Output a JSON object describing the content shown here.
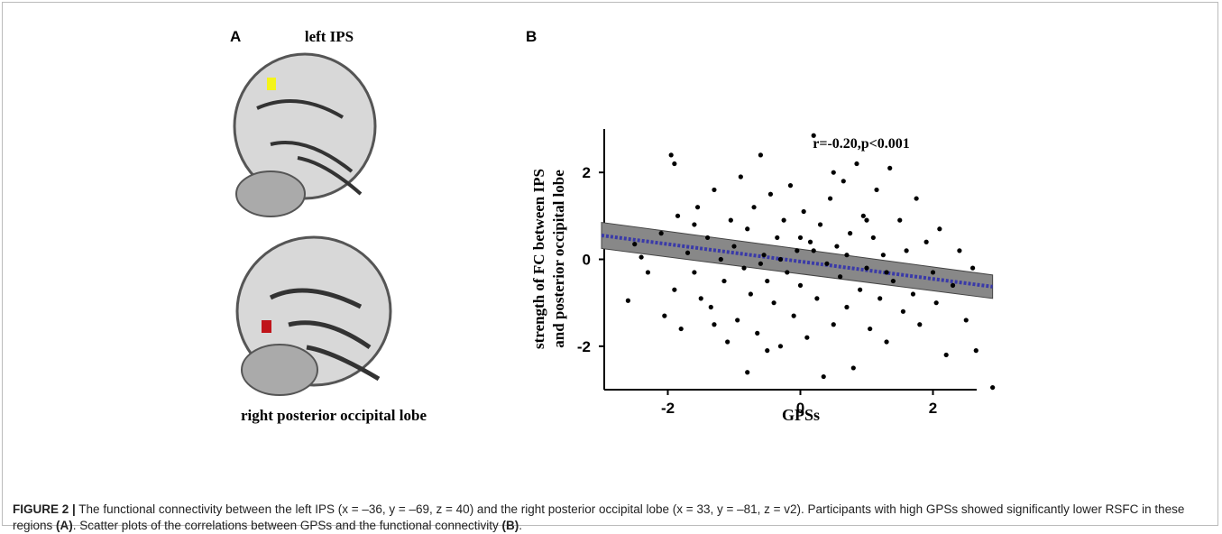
{
  "panel_a": {
    "label": "A",
    "top_label": "left IPS",
    "bottom_label": "right posterior occipital lobe"
  },
  "chart_data": {
    "type": "scatter",
    "panel_label": "B",
    "annotation": "r=-0.20,p<0.001",
    "x_label": "GPSs",
    "y_label": [
      "strength of FC between IPS",
      "and posterior occipital lobe"
    ],
    "xlim": [
      -3,
      3
    ],
    "ylim": [
      -3,
      3
    ],
    "xticks": [
      -2,
      0,
      2
    ],
    "yticks": [
      -2,
      0,
      2
    ],
    "color": "#000000",
    "x": [
      -2.6,
      -2.5,
      -2.4,
      -2.1,
      -2.05,
      -1.95,
      -1.9,
      -1.85,
      -1.8,
      -1.7,
      -1.6,
      -1.55,
      -1.5,
      -1.4,
      -1.35,
      -1.3,
      -1.2,
      -1.15,
      -1.1,
      -1.05,
      -1.0,
      -0.95,
      -0.9,
      -0.85,
      -0.8,
      -0.75,
      -0.7,
      -0.65,
      -0.6,
      -0.55,
      -0.5,
      -0.45,
      -0.4,
      -0.35,
      -0.3,
      -0.25,
      -0.2,
      -0.15,
      -0.1,
      -0.05,
      0.0,
      0.05,
      0.1,
      0.15,
      0.2,
      0.25,
      0.3,
      0.35,
      0.4,
      0.45,
      0.5,
      0.55,
      0.6,
      0.65,
      0.7,
      0.75,
      0.8,
      0.85,
      0.9,
      0.95,
      1.0,
      1.05,
      1.1,
      1.15,
      1.2,
      1.25,
      1.3,
      1.35,
      1.4,
      1.5,
      1.55,
      1.6,
      1.7,
      1.75,
      1.8,
      1.9,
      2.0,
      2.05,
      2.1,
      2.2,
      2.3,
      2.4,
      2.5,
      2.6,
      2.65,
      2.9,
      -0.8,
      -1.3,
      0.5,
      1.0,
      -0.3,
      0.2,
      0.7,
      -0.6,
      0.0,
      1.3,
      -1.6,
      -2.3,
      -0.5,
      -1.9
    ],
    "values": [
      -0.95,
      0.35,
      0.05,
      0.6,
      -1.3,
      2.4,
      -0.7,
      1.0,
      -1.6,
      0.15,
      -0.3,
      1.2,
      -0.9,
      0.5,
      -1.1,
      1.6,
      0.0,
      -0.5,
      -1.9,
      0.9,
      0.3,
      -1.4,
      1.9,
      -0.2,
      0.7,
      -0.8,
      1.2,
      -1.7,
      2.4,
      0.1,
      -0.5,
      1.5,
      -1.0,
      0.5,
      -2.0,
      0.9,
      -0.3,
      1.7,
      -1.3,
      0.2,
      -0.6,
      1.1,
      -1.8,
      0.4,
      2.85,
      -0.9,
      0.8,
      -2.7,
      -0.1,
      1.4,
      -1.5,
      0.3,
      -0.4,
      1.8,
      -1.1,
      0.6,
      -2.5,
      2.2,
      -0.7,
      1.0,
      -0.2,
      -1.6,
      0.5,
      1.6,
      -0.9,
      0.1,
      -1.9,
      2.1,
      -0.5,
      0.9,
      -1.2,
      0.2,
      -0.8,
      1.4,
      -1.5,
      0.4,
      -0.3,
      -1.0,
      0.7,
      -2.2,
      -0.6,
      0.2,
      -1.4,
      -0.2,
      -2.1,
      -2.95,
      -2.6,
      -1.5,
      2.0,
      0.9,
      0.0,
      0.2,
      0.1,
      -0.1,
      0.5,
      -0.3,
      0.8,
      -0.3,
      -2.1,
      2.2
    ],
    "fit": {
      "x": [
        -3,
        2.9
      ],
      "values": [
        0.55,
        -0.63
      ],
      "ci_lower": [
        0.25,
        -0.9
      ],
      "ci_upper": [
        0.85,
        -0.36
      ],
      "color": "#3a3aa8",
      "band_color": "#888888"
    }
  },
  "caption": {
    "label": "FIGURE 2 |",
    "text1": " The functional connectivity between the left IPS (x = –36, y = –69, z = 40) and the right posterior occipital lobe (x = 33, y = –81, z = v2). Participants with high GPSs showed significantly lower RSFC in these regions ",
    "ref_a": "(A)",
    "text2": ". Scatter plots of the correlations between GPSs and the functional connectivity ",
    "ref_b": "(B)",
    "end": "."
  }
}
